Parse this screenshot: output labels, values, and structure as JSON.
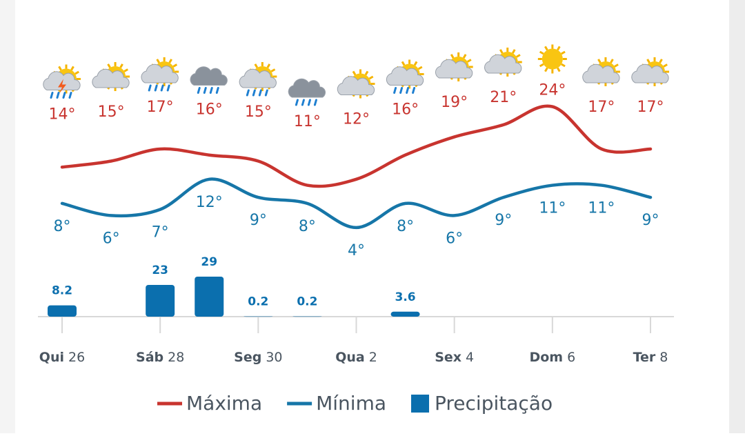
{
  "chart_data": {
    "type": "weather",
    "categories": [
      "Qui",
      null,
      "Sáb",
      null,
      "Seg",
      null,
      "Qua",
      null,
      "Sex",
      null,
      "Dom",
      null,
      "Ter"
    ],
    "dates": [
      26,
      null,
      28,
      null,
      30,
      null,
      2,
      null,
      4,
      null,
      6,
      null,
      8
    ],
    "ylim": [
      0,
      30
    ],
    "y2lim": [
      0,
      30
    ],
    "series": [
      {
        "name": "Máxima",
        "color": "#c8342f",
        "values": [
          14,
          15,
          17,
          16,
          15,
          11,
          12,
          16,
          19,
          21,
          24,
          17,
          17
        ],
        "value_labels": [
          "14°",
          "15°",
          "17°",
          "16°",
          "15°",
          "11°",
          "12°",
          "16°",
          "19°",
          "21°",
          "24°",
          "17°",
          "17°"
        ]
      },
      {
        "name": "Mínima",
        "color": "#1676a8",
        "values": [
          8,
          6,
          7,
          12,
          9,
          8,
          4,
          8,
          6,
          9,
          11,
          11,
          9
        ],
        "value_labels": [
          "8°",
          "6°",
          "7°",
          "12°",
          "9°",
          "8°",
          "4°",
          "8°",
          "6°",
          "9°",
          "11°",
          "11°",
          "9°"
        ]
      },
      {
        "name": "Precipitação",
        "color": "#0b6fae",
        "axis": "y2",
        "values": [
          8.2,
          null,
          23,
          29,
          0.2,
          0.2,
          null,
          3.6,
          null,
          null,
          null,
          null,
          null
        ]
      }
    ]
  }
}
